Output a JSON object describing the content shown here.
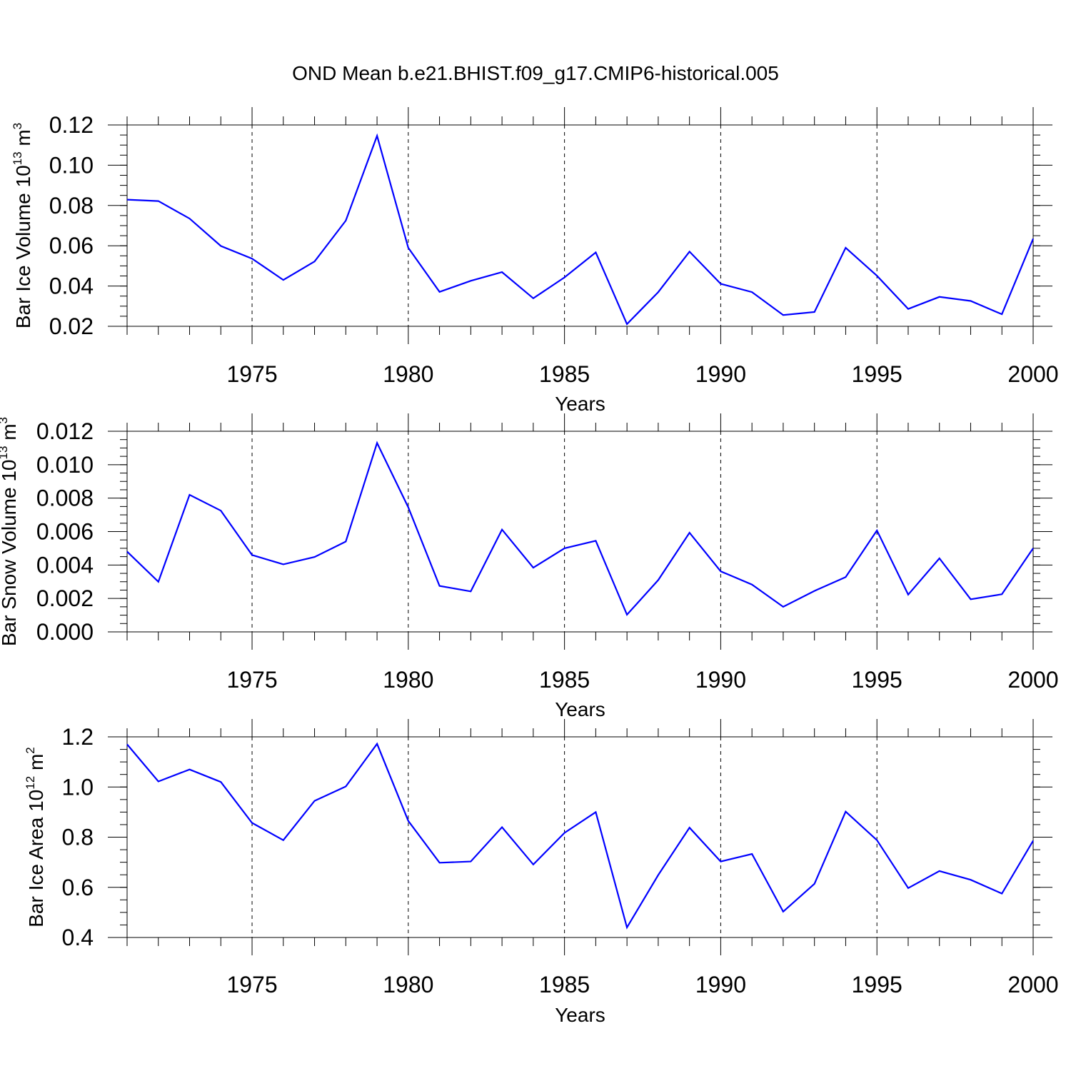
{
  "title": "OND Mean b.e21.BHIST.f09_g17.CMIP6-historical.005",
  "line_color": "#0000ff",
  "chart_data": [
    {
      "type": "line",
      "title": "",
      "xlabel": "Years",
      "ylabel": {
        "prefix": "Bar Ice Volume 10",
        "exp": "13",
        "unit": " m",
        "unit_exp": "3"
      },
      "xlim": [
        1971,
        2000
      ],
      "ylim": [
        0.02,
        0.12
      ],
      "yticks": [
        0.02,
        0.04,
        0.06,
        0.08,
        0.1,
        0.12
      ],
      "ytick_labels": [
        "0.02",
        "0.04",
        "0.06",
        "0.08",
        "0.10",
        "0.12"
      ],
      "xticks": [
        1975,
        1980,
        1985,
        1990,
        1995,
        2000
      ],
      "xtick_labels": [
        "1975",
        "1980",
        "1985",
        "1990",
        "1995",
        "2000"
      ],
      "grid": "dashed vertical at major x ticks",
      "series": [
        {
          "name": "Bar Ice Volume",
          "x": [
            1971,
            1972,
            1973,
            1974,
            1975,
            1976,
            1977,
            1978,
            1979,
            1980,
            1981,
            1982,
            1983,
            1984,
            1985,
            1986,
            1987,
            1988,
            1989,
            1990,
            1991,
            1992,
            1993,
            1994,
            1995,
            1996,
            1997,
            1998,
            1999,
            2000
          ],
          "values": [
            0.0829,
            0.0822,
            0.0735,
            0.0599,
            0.0536,
            0.043,
            0.0522,
            0.0725,
            0.1146,
            0.059,
            0.0371,
            0.0426,
            0.0469,
            0.0339,
            0.0443,
            0.0567,
            0.0211,
            0.037,
            0.0571,
            0.0411,
            0.037,
            0.0256,
            0.0271,
            0.059,
            0.0451,
            0.0286,
            0.0346,
            0.0326,
            0.026,
            0.0635
          ]
        }
      ]
    },
    {
      "type": "line",
      "title": "",
      "xlabel": "Years",
      "ylabel": {
        "prefix": "Bar Snow Volume 10",
        "exp": "13",
        "unit": " m",
        "unit_exp": "3"
      },
      "xlim": [
        1971,
        2000
      ],
      "ylim": [
        0.0,
        0.012
      ],
      "yticks": [
        0.0,
        0.002,
        0.004,
        0.006,
        0.008,
        0.01,
        0.012
      ],
      "ytick_labels": [
        "0.000",
        "0.002",
        "0.004",
        "0.006",
        "0.008",
        "0.010",
        "0.012"
      ],
      "xticks": [
        1975,
        1980,
        1985,
        1990,
        1995,
        2000
      ],
      "xtick_labels": [
        "1975",
        "1980",
        "1985",
        "1990",
        "1995",
        "2000"
      ],
      "grid": "dashed vertical at major x ticks",
      "series": [
        {
          "name": "Bar Snow Volume",
          "x": [
            1971,
            1972,
            1973,
            1974,
            1975,
            1976,
            1977,
            1978,
            1979,
            1980,
            1981,
            1982,
            1983,
            1984,
            1985,
            1986,
            1987,
            1988,
            1989,
            1990,
            1991,
            1992,
            1993,
            1994,
            1995,
            1996,
            1997,
            1998,
            1999,
            2000
          ],
          "values": [
            0.0048,
            0.003,
            0.0082,
            0.00725,
            0.0046,
            0.00404,
            0.00448,
            0.0054,
            0.0113,
            0.00745,
            0.00275,
            0.00242,
            0.00612,
            0.00384,
            0.005,
            0.00545,
            0.00103,
            0.0031,
            0.00593,
            0.00362,
            0.00283,
            0.0015,
            0.00245,
            0.00328,
            0.00607,
            0.00223,
            0.0044,
            0.00195,
            0.00225,
            0.005
          ]
        }
      ]
    },
    {
      "type": "line",
      "title": "",
      "xlabel": "Years",
      "ylabel": {
        "prefix": "Bar Ice Area 10",
        "exp": "12",
        "unit": " m",
        "unit_exp": "2"
      },
      "xlim": [
        1971,
        2000
      ],
      "ylim": [
        0.4,
        1.2
      ],
      "yticks": [
        0.4,
        0.6,
        0.8,
        1.0,
        1.2
      ],
      "ytick_labels": [
        "0.4",
        "0.6",
        "0.8",
        "1.0",
        "1.2"
      ],
      "xticks": [
        1975,
        1980,
        1985,
        1990,
        1995,
        2000
      ],
      "xtick_labels": [
        "1975",
        "1980",
        "1985",
        "1990",
        "1995",
        "2000"
      ],
      "grid": "dashed vertical at major x ticks",
      "series": [
        {
          "name": "Bar Ice Area",
          "x": [
            1971,
            1972,
            1973,
            1974,
            1975,
            1976,
            1977,
            1978,
            1979,
            1980,
            1981,
            1982,
            1983,
            1984,
            1985,
            1986,
            1987,
            1988,
            1989,
            1990,
            1991,
            1992,
            1993,
            1994,
            1995,
            1996,
            1997,
            1998,
            1999,
            2000
          ],
          "values": [
            1.17,
            1.022,
            1.07,
            1.02,
            0.857,
            0.788,
            0.945,
            1.002,
            1.172,
            0.865,
            0.698,
            0.703,
            0.84,
            0.691,
            0.817,
            0.9,
            0.44,
            0.649,
            0.838,
            0.703,
            0.733,
            0.503,
            0.614,
            0.902,
            0.788,
            0.597,
            0.665,
            0.63,
            0.575,
            0.786
          ]
        }
      ]
    }
  ]
}
